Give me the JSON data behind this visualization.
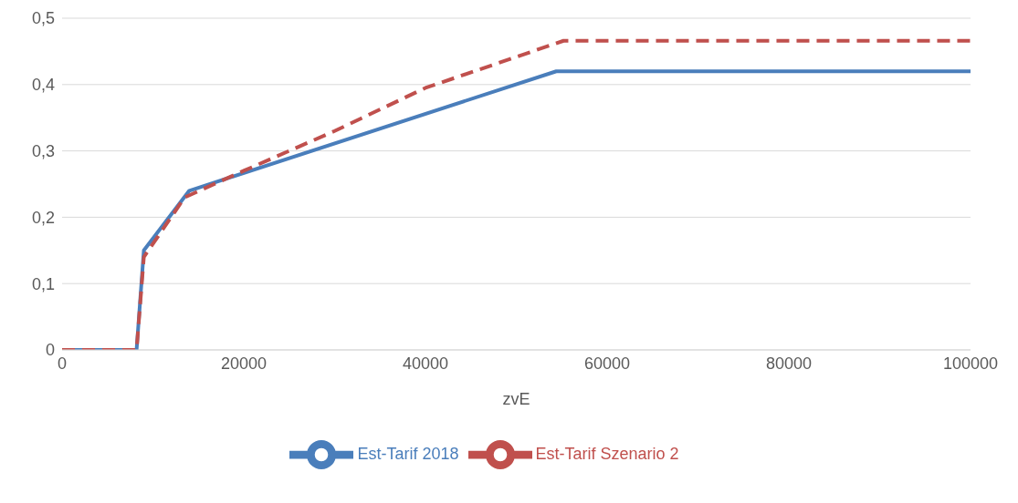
{
  "chart_data": {
    "type": "line",
    "xlabel": "zvE",
    "xlim": [
      0,
      100000
    ],
    "xticks": [
      0,
      20000,
      40000,
      60000,
      80000,
      100000
    ],
    "ylim": [
      0,
      0.5
    ],
    "yticks": [
      0,
      {
        "value": 0.1,
        "label": "0,1"
      },
      {
        "value": 0.2,
        "label": "0,2"
      },
      {
        "value": 0.3,
        "label": "0,3"
      },
      {
        "value": 0.4,
        "label": "0,4"
      },
      {
        "value": 0.5,
        "label": "0,5"
      }
    ],
    "grid": "y",
    "legend": "bottom",
    "marker": "none",
    "series": [
      {
        "name": "Est-Tarif 2018",
        "color": "#4a7ebb",
        "line_style": "solid",
        "x": [
          0,
          8200,
          9000,
          14000,
          54400,
          100000
        ],
        "values": [
          0,
          0,
          0.15,
          0.24,
          0.42,
          0.42
        ]
      },
      {
        "name": "Est-Tarif Szenario 2",
        "color": "#c0504d",
        "line_style": "dashed",
        "x": [
          0,
          8200,
          9000,
          13500,
          20000,
          30000,
          40000,
          55200,
          100000
        ],
        "values": [
          0,
          0,
          0.14,
          0.23,
          0.27,
          0.33,
          0.395,
          0.466,
          0.466
        ]
      }
    ]
  }
}
